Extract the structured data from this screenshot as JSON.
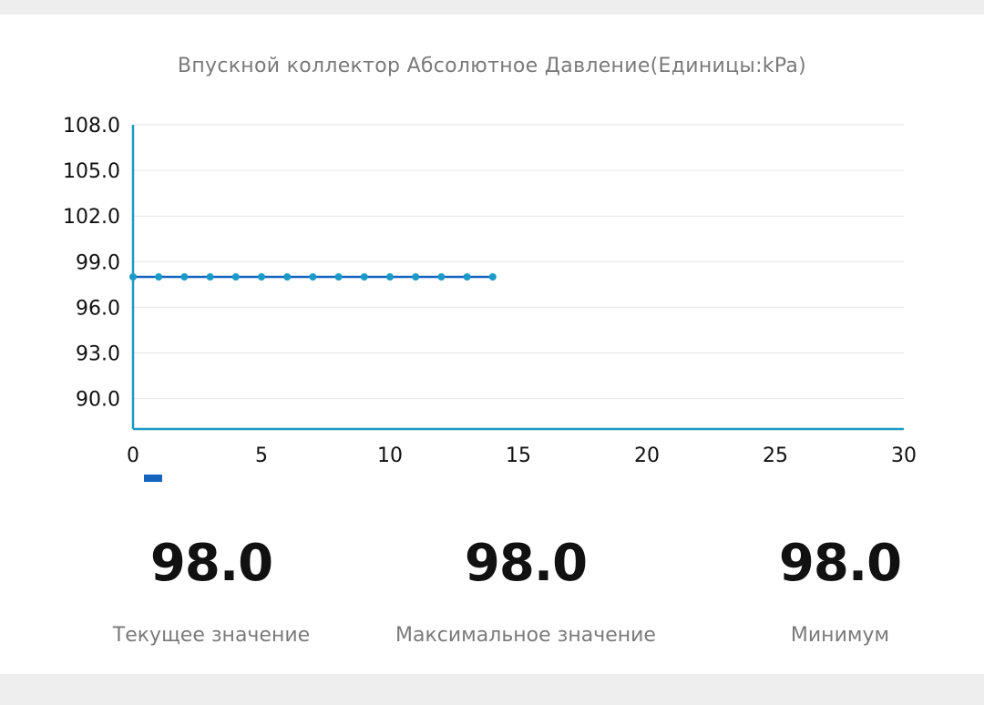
{
  "chart_data": {
    "type": "line",
    "title": "Впускной коллектор Абсолютное Давление(Единицы:kPa)",
    "x": [
      0,
      1,
      2,
      3,
      4,
      5,
      6,
      7,
      8,
      9,
      10,
      11,
      12,
      13,
      14
    ],
    "series": [
      {
        "values": [
          98.0,
          98.0,
          98.0,
          98.0,
          98.0,
          98.0,
          98.0,
          98.0,
          98.0,
          98.0,
          98.0,
          98.0,
          98.0,
          98.0,
          98.0
        ]
      }
    ],
    "xlim": [
      0,
      30
    ],
    "ylim": [
      88.0,
      108.0
    ],
    "x_ticks": [
      "0",
      "5",
      "10",
      "15",
      "20",
      "25",
      "30"
    ],
    "y_ticks": [
      "108.0",
      "105.0",
      "102.0",
      "99.0",
      "96.0",
      "93.0",
      "90.0"
    ],
    "grid": "horizontal",
    "legend": "bottom-left",
    "colors": {
      "line": "#1565c0",
      "marker": "#1a9bc7",
      "axis": "#1a9bc7",
      "grid": "#e6e6e6",
      "legend_swatch": "#1565c0"
    }
  },
  "stats": {
    "current": {
      "value": "98.0",
      "label": "Текущее значение"
    },
    "max": {
      "value": "98.0",
      "label": "Максимальное значение"
    },
    "min": {
      "value": "98.0",
      "label": "Минимум"
    }
  }
}
